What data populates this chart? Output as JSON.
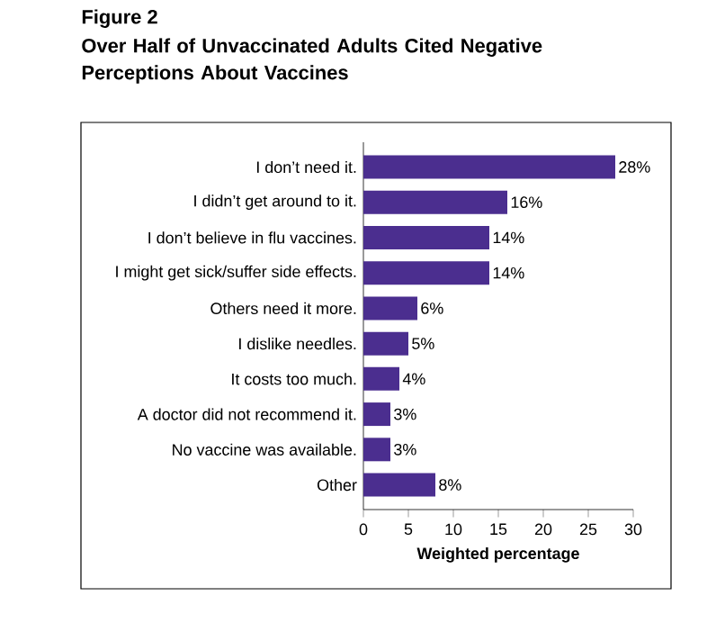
{
  "chart_data": {
    "type": "bar",
    "orientation": "horizontal",
    "title": "Figure 2",
    "subtitle": "Over Half of Unvaccinated Adults Cited Negative Perceptions About Vaccines",
    "xlabel": "Weighted percentage",
    "categories": [
      "I don’t need it.",
      "I didn’t get around to it.",
      "I don’t believe in flu vaccines.",
      "I might get sick/suffer side effects.",
      "Others need it more.",
      "I dislike needles.",
      "It costs too much.",
      "A doctor did not recommend it.",
      "No vaccine was available.",
      "Other"
    ],
    "values": [
      28,
      16,
      14,
      14,
      6,
      5,
      4,
      3,
      3,
      8
    ],
    "value_labels": [
      "28%",
      "16%",
      "14%",
      "14%",
      "6%",
      "5%",
      "4%",
      "3%",
      "3%",
      "8%"
    ],
    "color": "#4b2e8f",
    "xlim": [
      0,
      30
    ],
    "xticks": [
      0,
      5,
      10,
      15,
      20,
      25,
      30
    ]
  }
}
